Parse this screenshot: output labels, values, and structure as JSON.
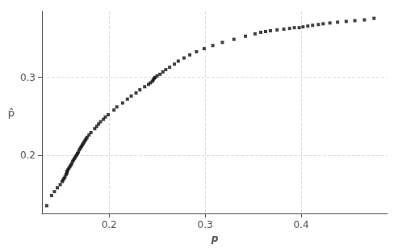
{
  "chart_data": {
    "type": "scatter",
    "xlabel": "p",
    "ylabel": "p̂",
    "xlim": [
      0.13,
      0.49
    ],
    "ylim": [
      0.125,
      0.385
    ],
    "xticks": [
      0.2,
      0.3,
      0.4
    ],
    "yticks": [
      0.2,
      0.3
    ],
    "grid": true,
    "color": "#111111",
    "marker": "square",
    "x": [
      0.135,
      0.14,
      0.143,
      0.146,
      0.149,
      0.151,
      0.152,
      0.153,
      0.154,
      0.155,
      0.156,
      0.156,
      0.157,
      0.158,
      0.159,
      0.16,
      0.161,
      0.162,
      0.163,
      0.164,
      0.165,
      0.166,
      0.167,
      0.168,
      0.169,
      0.17,
      0.171,
      0.172,
      0.173,
      0.174,
      0.175,
      0.176,
      0.177,
      0.179,
      0.181,
      0.185,
      0.187,
      0.189,
      0.191,
      0.194,
      0.196,
      0.199,
      0.205,
      0.208,
      0.214,
      0.219,
      0.223,
      0.228,
      0.232,
      0.237,
      0.241,
      0.243,
      0.245,
      0.246,
      0.247,
      0.248,
      0.25,
      0.253,
      0.256,
      0.259,
      0.263,
      0.268,
      0.272,
      0.278,
      0.284,
      0.291,
      0.299,
      0.308,
      0.318,
      0.33,
      0.342,
      0.352,
      0.358,
      0.363,
      0.368,
      0.375,
      0.382,
      0.388,
      0.393,
      0.398,
      0.402,
      0.407,
      0.412,
      0.418,
      0.423,
      0.43,
      0.438,
      0.447,
      0.456,
      0.466,
      0.476
    ],
    "values": [
      0.135,
      0.148,
      0.153,
      0.158,
      0.162,
      0.166,
      0.168,
      0.17,
      0.172,
      0.175,
      0.177,
      0.179,
      0.181,
      0.183,
      0.185,
      0.187,
      0.189,
      0.192,
      0.194,
      0.196,
      0.198,
      0.2,
      0.202,
      0.204,
      0.207,
      0.209,
      0.211,
      0.213,
      0.215,
      0.217,
      0.219,
      0.221,
      0.223,
      0.226,
      0.229,
      0.234,
      0.237,
      0.24,
      0.243,
      0.246,
      0.249,
      0.252,
      0.258,
      0.262,
      0.267,
      0.272,
      0.276,
      0.28,
      0.284,
      0.288,
      0.291,
      0.293,
      0.295,
      0.297,
      0.299,
      0.3,
      0.302,
      0.304,
      0.307,
      0.31,
      0.313,
      0.317,
      0.321,
      0.325,
      0.329,
      0.333,
      0.337,
      0.341,
      0.345,
      0.349,
      0.353,
      0.356,
      0.358,
      0.359,
      0.36,
      0.361,
      0.362,
      0.363,
      0.364,
      0.364,
      0.365,
      0.366,
      0.367,
      0.368,
      0.369,
      0.37,
      0.371,
      0.372,
      0.373,
      0.374,
      0.376
    ]
  }
}
